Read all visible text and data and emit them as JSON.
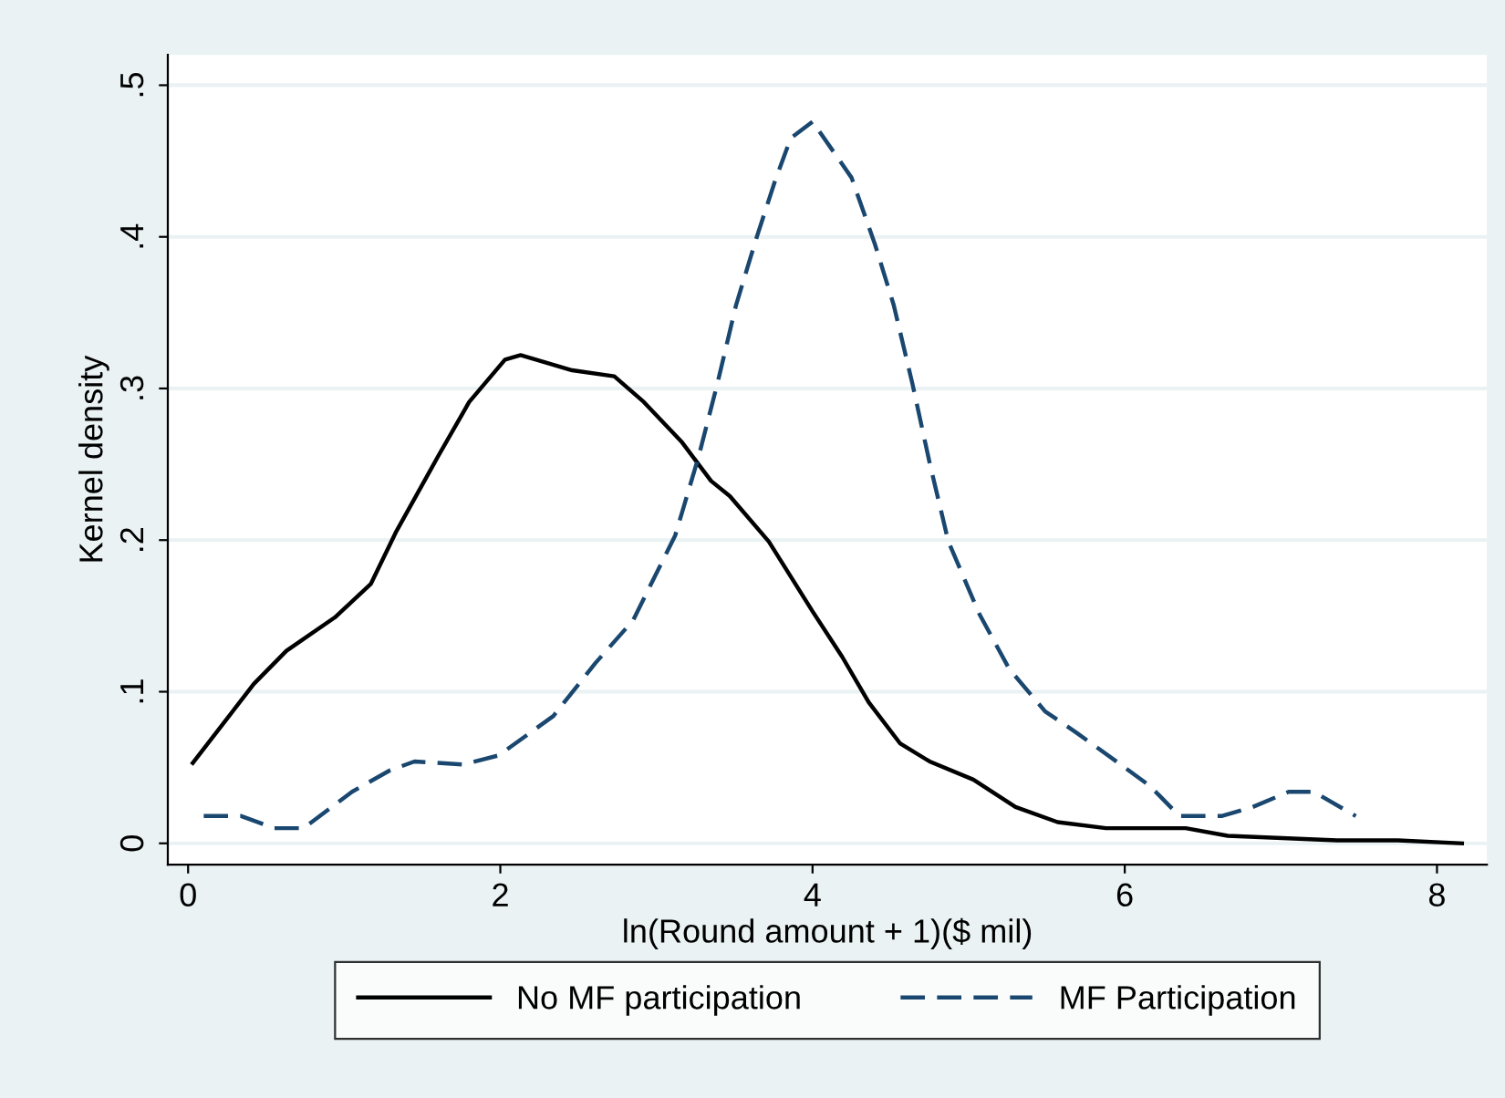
{
  "chart_data": {
    "type": "line",
    "xlabel": "ln(Round amount + 1)($ mil)",
    "ylabel": "Kernel density",
    "xlim": [
      -0.13,
      8.32
    ],
    "ylim": [
      -0.014,
      0.52
    ],
    "xticks": [
      0,
      2,
      4,
      6,
      8
    ],
    "yticks": [
      {
        "value": 0,
        "label": "0"
      },
      {
        "value": 0.1,
        "label": ".1"
      },
      {
        "value": 0.2,
        "label": ".2"
      },
      {
        "value": 0.3,
        "label": ".3"
      },
      {
        "value": 0.4,
        "label": ".4"
      },
      {
        "value": 0.5,
        "label": ".5"
      }
    ],
    "grid": "y",
    "legend": "bottom",
    "series": [
      {
        "name": "No MF participation",
        "color": "#000000",
        "line_style": "solid",
        "x": [
          0.03,
          0.42,
          0.63,
          0.94,
          1.17,
          1.33,
          1.6,
          1.8,
          2.03,
          2.13,
          2.46,
          2.73,
          2.92,
          3.16,
          3.35,
          3.47,
          3.72,
          4.0,
          4.19,
          4.36,
          4.56,
          4.75,
          5.03,
          5.3,
          5.57,
          5.88,
          6.39,
          6.66,
          7.36,
          7.75,
          8.16
        ],
        "values": [
          0.053,
          0.105,
          0.127,
          0.149,
          0.171,
          0.205,
          0.255,
          0.291,
          0.319,
          0.322,
          0.312,
          0.308,
          0.291,
          0.265,
          0.239,
          0.229,
          0.199,
          0.153,
          0.123,
          0.093,
          0.066,
          0.054,
          0.042,
          0.024,
          0.014,
          0.01,
          0.01,
          0.005,
          0.002,
          0.002,
          0.0
        ]
      },
      {
        "name": "MF Participation",
        "color": "#1a476f",
        "line_style": "dashed",
        "x": [
          0.1,
          0.34,
          0.55,
          0.74,
          1.05,
          1.29,
          1.45,
          1.76,
          1.99,
          2.34,
          2.61,
          2.85,
          3.12,
          3.27,
          3.39,
          3.51,
          3.64,
          3.76,
          3.86,
          4.0,
          4.25,
          4.4,
          4.52,
          4.64,
          4.75,
          4.87,
          5.07,
          5.26,
          5.49,
          5.69,
          5.96,
          6.16,
          6.35,
          6.62,
          6.82,
          7.05,
          7.21,
          7.48
        ],
        "values": [
          0.018,
          0.018,
          0.01,
          0.01,
          0.034,
          0.048,
          0.054,
          0.052,
          0.058,
          0.084,
          0.119,
          0.147,
          0.203,
          0.255,
          0.303,
          0.355,
          0.399,
          0.437,
          0.465,
          0.476,
          0.439,
          0.395,
          0.355,
          0.303,
          0.251,
          0.199,
          0.151,
          0.115,
          0.087,
          0.073,
          0.053,
          0.038,
          0.018,
          0.018,
          0.024,
          0.034,
          0.034,
          0.018
        ]
      }
    ]
  }
}
